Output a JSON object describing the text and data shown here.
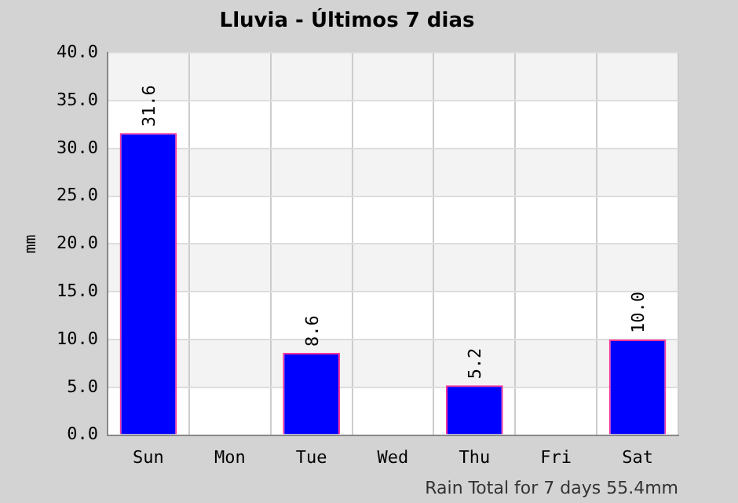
{
  "chart_data": {
    "type": "bar",
    "title": "Lluvia - Últimos 7 dias",
    "ylabel": "mm",
    "categories": [
      "Sun",
      "Mon",
      "Tue",
      "Wed",
      "Thu",
      "Fri",
      "Sat"
    ],
    "values": [
      31.6,
      0,
      8.6,
      0,
      5.2,
      0,
      10.0
    ],
    "value_labels": [
      "31.6",
      null,
      "8.6",
      null,
      "5.2",
      null,
      "10.0"
    ],
    "color": "#0000ff",
    "ylim": [
      0,
      40
    ],
    "yticks": [
      {
        "value": 0,
        "label": "0.0"
      },
      {
        "value": 5,
        "label": "5.0"
      },
      {
        "value": 10,
        "label": "10.0"
      },
      {
        "value": 15,
        "label": "15.0"
      },
      {
        "value": 20,
        "label": "20.0"
      },
      {
        "value": 25,
        "label": "25.0"
      },
      {
        "value": 30,
        "label": "30.0"
      },
      {
        "value": 35,
        "label": "35.0"
      },
      {
        "value": 40,
        "label": "40.0"
      }
    ],
    "grid": true,
    "annotations": [
      "Rain Total for 7 days 55.4mm"
    ]
  }
}
